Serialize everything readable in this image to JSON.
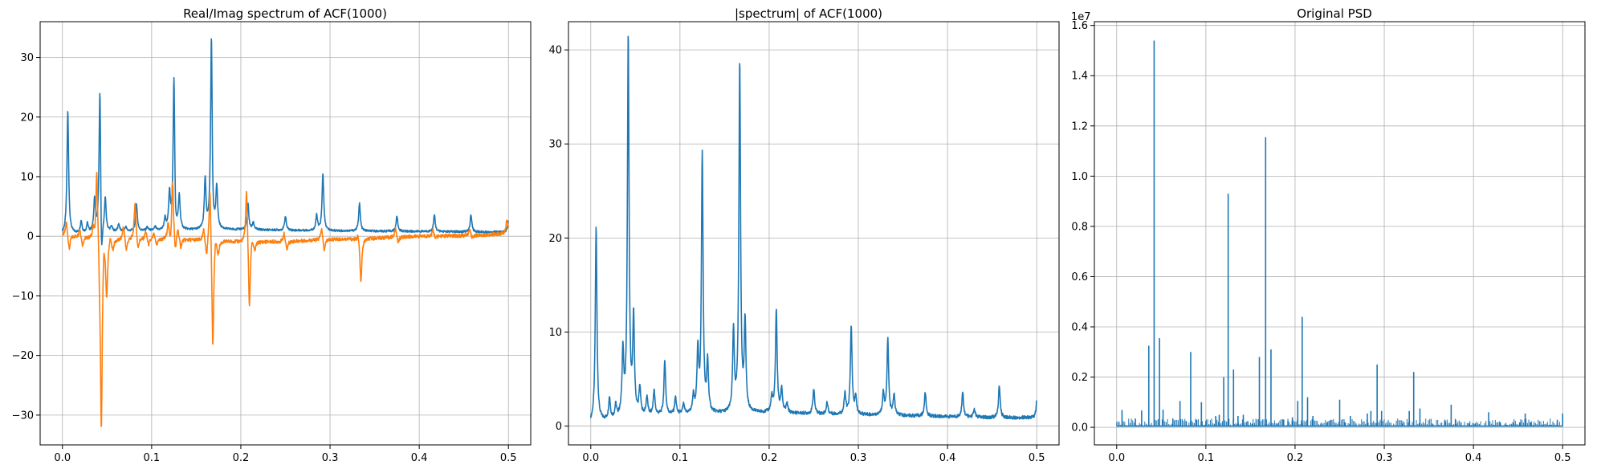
{
  "colors": {
    "series1": "#1f77b4",
    "series2": "#ff7f0e",
    "grid": "#b0b0b0"
  },
  "chart_data": [
    {
      "type": "line",
      "title": "Real/Imag spectrum of ACF(1000)",
      "xlabel": "",
      "ylabel": "",
      "xlim": [
        -0.025,
        0.525
      ],
      "ylim": [
        -35,
        36
      ],
      "xticks": [
        0.0,
        0.1,
        0.2,
        0.3,
        0.4,
        0.5
      ],
      "xtick_labels": [
        "0.0",
        "0.1",
        "0.2",
        "0.3",
        "0.4",
        "0.5"
      ],
      "yticks": [
        -30,
        -20,
        -10,
        0,
        10,
        20,
        30
      ],
      "ytick_labels": [
        "−30",
        "−20",
        "−10",
        "0",
        "10",
        "20",
        "30"
      ],
      "grid": true,
      "series": [
        {
          "style": "spikes",
          "baseline": [
            [
              0.0,
              0.3
            ],
            [
              0.05,
              0.7
            ],
            [
              0.1,
              0.9
            ],
            [
              0.15,
              1.0
            ],
            [
              0.2,
              1.1
            ],
            [
              0.25,
              1.0
            ],
            [
              0.3,
              0.9
            ],
            [
              0.35,
              0.85
            ],
            [
              0.4,
              0.8
            ],
            [
              0.45,
              0.75
            ],
            [
              0.5,
              0.7
            ]
          ],
          "spikes": [
            [
              0.006,
              21.0
            ],
            [
              0.021,
              2.5
            ],
            [
              0.028,
              2.0
            ],
            [
              0.036,
              6.0
            ],
            [
              0.042,
              26.0,
              -8.8
            ],
            [
              0.048,
              6.3
            ],
            [
              0.055,
              1.5
            ],
            [
              0.063,
              2.0
            ],
            [
              0.071,
              1.5
            ],
            [
              0.083,
              5.5
            ],
            [
              0.095,
              1.5
            ],
            [
              0.104,
              1.5
            ],
            [
              0.115,
              2.8
            ],
            [
              0.12,
              7.0
            ],
            [
              0.125,
              27.0,
              -2.9
            ],
            [
              0.131,
              6.5
            ],
            [
              0.16,
              9.3
            ],
            [
              0.167,
              33.5,
              -2.0
            ],
            [
              0.173,
              8.0
            ],
            [
              0.208,
              5.5
            ],
            [
              0.214,
              2.3
            ],
            [
              0.25,
              3.4
            ],
            [
              0.285,
              3.5
            ],
            [
              0.292,
              10.6
            ],
            [
              0.333,
              5.5
            ],
            [
              0.375,
              3.4
            ],
            [
              0.417,
              3.6
            ],
            [
              0.458,
              3.6
            ],
            [
              0.5,
              2.5
            ]
          ]
        },
        {
          "style": "dispersive",
          "baseline": [
            [
              0.0,
              0.2
            ],
            [
              0.05,
              -0.5
            ],
            [
              0.1,
              -0.6
            ],
            [
              0.15,
              -0.6
            ],
            [
              0.2,
              -0.9
            ],
            [
              0.25,
              -0.9
            ],
            [
              0.3,
              -0.5
            ],
            [
              0.35,
              -0.3
            ],
            [
              0.4,
              0.0
            ],
            [
              0.45,
              0.1
            ],
            [
              0.5,
              0.4
            ]
          ],
          "features": [
            [
              0.006,
              2.5,
              -2.5
            ],
            [
              0.021,
              1.5,
              -1.5
            ],
            [
              0.036,
              1.8,
              -2.0
            ],
            [
              0.04,
              14.0,
              -4.5
            ],
            [
              0.042,
              2.0,
              -32.0
            ],
            [
              0.048,
              3.0,
              -9.2
            ],
            [
              0.055,
              1.2,
              -1.5
            ],
            [
              0.07,
              2.5,
              -2.0
            ],
            [
              0.083,
              6.4,
              -2.0
            ],
            [
              0.095,
              1.5,
              -1.0
            ],
            [
              0.104,
              1.0,
              -1.0
            ],
            [
              0.12,
              2.5,
              -2.0
            ],
            [
              0.125,
              10.4,
              -2.8
            ],
            [
              0.131,
              2.0,
              -1.5
            ],
            [
              0.16,
              2.0,
              -3.0
            ],
            [
              0.167,
              10.5,
              -19.0
            ],
            [
              0.173,
              2.0,
              -2.0
            ],
            [
              0.208,
              9.7,
              -12.0
            ],
            [
              0.214,
              1.5,
              -1.5
            ],
            [
              0.25,
              1.5,
              -1.5
            ],
            [
              0.292,
              2.0,
              -2.0
            ],
            [
              0.333,
              1.2,
              -7.5
            ],
            [
              0.375,
              1.5,
              -1.0
            ],
            [
              0.417,
              1.0,
              -0.5
            ],
            [
              0.458,
              1.0,
              -0.5
            ],
            [
              0.5,
              2.5,
              0.0
            ]
          ]
        }
      ]
    },
    {
      "type": "line",
      "title": "|spectrum| of ACF(1000)",
      "xlabel": "",
      "ylabel": "",
      "xlim": [
        -0.025,
        0.525
      ],
      "ylim": [
        -2,
        43
      ],
      "xticks": [
        0.0,
        0.1,
        0.2,
        0.3,
        0.4,
        0.5
      ],
      "xtick_labels": [
        "0.0",
        "0.1",
        "0.2",
        "0.3",
        "0.4",
        "0.5"
      ],
      "yticks": [
        0,
        10,
        20,
        30,
        40
      ],
      "ytick_labels": [
        "0",
        "10",
        "20",
        "30",
        "40"
      ],
      "grid": true,
      "series": [
        {
          "style": "spikes",
          "baseline": [
            [
              0.0,
              0.3
            ],
            [
              0.05,
              1.0
            ],
            [
              0.1,
              1.2
            ],
            [
              0.15,
              1.3
            ],
            [
              0.2,
              1.4
            ],
            [
              0.25,
              1.3
            ],
            [
              0.3,
              1.2
            ],
            [
              0.35,
              1.1
            ],
            [
              0.4,
              1.0
            ],
            [
              0.45,
              0.9
            ],
            [
              0.5,
              0.9
            ]
          ],
          "spikes": [
            [
              0.006,
              21.2
            ],
            [
              0.021,
              2.9
            ],
            [
              0.028,
              2.0
            ],
            [
              0.036,
              7.6
            ],
            [
              0.042,
              41.3
            ],
            [
              0.048,
              11.2
            ],
            [
              0.055,
              3.9
            ],
            [
              0.063,
              3.0
            ],
            [
              0.071,
              3.7
            ],
            [
              0.083,
              7.0
            ],
            [
              0.095,
              3.0
            ],
            [
              0.104,
              2.2
            ],
            [
              0.115,
              3.0
            ],
            [
              0.12,
              7.8
            ],
            [
              0.125,
              28.9
            ],
            [
              0.131,
              6.6
            ],
            [
              0.16,
              9.9
            ],
            [
              0.167,
              38.4
            ],
            [
              0.173,
              10.8
            ],
            [
              0.203,
              3.0
            ],
            [
              0.208,
              12.3
            ],
            [
              0.214,
              3.9
            ],
            [
              0.22,
              2.3
            ],
            [
              0.25,
              4.0
            ],
            [
              0.265,
              2.5
            ],
            [
              0.285,
              3.4
            ],
            [
              0.292,
              10.7
            ],
            [
              0.297,
              3.0
            ],
            [
              0.328,
              3.5
            ],
            [
              0.333,
              9.2
            ],
            [
              0.34,
              3.3
            ],
            [
              0.375,
              3.6
            ],
            [
              0.417,
              3.6
            ],
            [
              0.43,
              1.8
            ],
            [
              0.458,
              4.3
            ],
            [
              0.5,
              2.6
            ]
          ]
        }
      ]
    },
    {
      "type": "line",
      "title": "Original PSD",
      "xlabel": "",
      "ylabel": "",
      "offset_text": "1e7",
      "xlim": [
        -0.025,
        0.525
      ],
      "ylim": [
        -0.07,
        1.615
      ],
      "xticks": [
        0.0,
        0.1,
        0.2,
        0.3,
        0.4,
        0.5
      ],
      "xtick_labels": [
        "0.0",
        "0.1",
        "0.2",
        "0.3",
        "0.4",
        "0.5"
      ],
      "yticks": [
        0.0,
        0.2,
        0.4,
        0.6,
        0.8,
        1.0,
        1.2,
        1.4,
        1.6
      ],
      "ytick_labels": [
        "0.0",
        "0.2",
        "0.4",
        "0.6",
        "0.8",
        "1.0",
        "1.2",
        "1.4",
        "1.6"
      ],
      "grid": true,
      "series": [
        {
          "style": "sticks",
          "baseline": [
            [
              0.0,
              0.005
            ],
            [
              0.5,
              0.005
            ]
          ],
          "spikes": [
            [
              0.0,
              0.08
            ],
            [
              0.006,
              0.69
            ],
            [
              0.014,
              0.06
            ],
            [
              0.021,
              0.35
            ],
            [
              0.028,
              0.67
            ],
            [
              0.031,
              0.07
            ],
            [
              0.036,
              3.25
            ],
            [
              0.042,
              15.4
            ],
            [
              0.048,
              3.55
            ],
            [
              0.052,
              0.7
            ],
            [
              0.063,
              0.35
            ],
            [
              0.069,
              0.1
            ],
            [
              0.071,
              1.05
            ],
            [
              0.078,
              0.25
            ],
            [
              0.083,
              3.0
            ],
            [
              0.089,
              0.3
            ],
            [
              0.095,
              1.0
            ],
            [
              0.1,
              0.25
            ],
            [
              0.104,
              0.05
            ],
            [
              0.111,
              0.45
            ],
            [
              0.115,
              0.5
            ],
            [
              0.12,
              2.0
            ],
            [
              0.125,
              9.3
            ],
            [
              0.131,
              2.3
            ],
            [
              0.136,
              0.45
            ],
            [
              0.142,
              0.5
            ],
            [
              0.147,
              0.25
            ],
            [
              0.152,
              0.15
            ],
            [
              0.156,
              0.1
            ],
            [
              0.16,
              2.8
            ],
            [
              0.167,
              11.55
            ],
            [
              0.173,
              3.1
            ],
            [
              0.18,
              0.15
            ],
            [
              0.187,
              0.3
            ],
            [
              0.192,
              0.25
            ],
            [
              0.197,
              0.4
            ],
            [
              0.203,
              1.05
            ],
            [
              0.208,
              4.4
            ],
            [
              0.214,
              1.2
            ],
            [
              0.22,
              0.45
            ],
            [
              0.229,
              0.15
            ],
            [
              0.236,
              0.2
            ],
            [
              0.24,
              0.3
            ],
            [
              0.245,
              0.1
            ],
            [
              0.25,
              1.1
            ],
            [
              0.256,
              0.2
            ],
            [
              0.262,
              0.45
            ],
            [
              0.268,
              0.1
            ],
            [
              0.281,
              0.55
            ],
            [
              0.285,
              0.65
            ],
            [
              0.292,
              2.5
            ],
            [
              0.297,
              0.65
            ],
            [
              0.304,
              0.1
            ],
            [
              0.32,
              0.15
            ],
            [
              0.328,
              0.65
            ],
            [
              0.333,
              2.2
            ],
            [
              0.34,
              0.75
            ],
            [
              0.354,
              0.15
            ],
            [
              0.361,
              0.1
            ],
            [
              0.368,
              0.3
            ],
            [
              0.375,
              0.9
            ],
            [
              0.38,
              0.3
            ],
            [
              0.386,
              0.2
            ],
            [
              0.395,
              0.15
            ],
            [
              0.402,
              0.15
            ],
            [
              0.417,
              0.6
            ],
            [
              0.423,
              0.1
            ],
            [
              0.43,
              0.2
            ],
            [
              0.437,
              0.1
            ],
            [
              0.445,
              0.15
            ],
            [
              0.452,
              0.2
            ],
            [
              0.458,
              0.55
            ],
            [
              0.464,
              0.2
            ],
            [
              0.478,
              0.1
            ],
            [
              0.486,
              0.1
            ],
            [
              0.494,
              0.3
            ],
            [
              0.5,
              0.55
            ]
          ]
        }
      ]
    }
  ]
}
